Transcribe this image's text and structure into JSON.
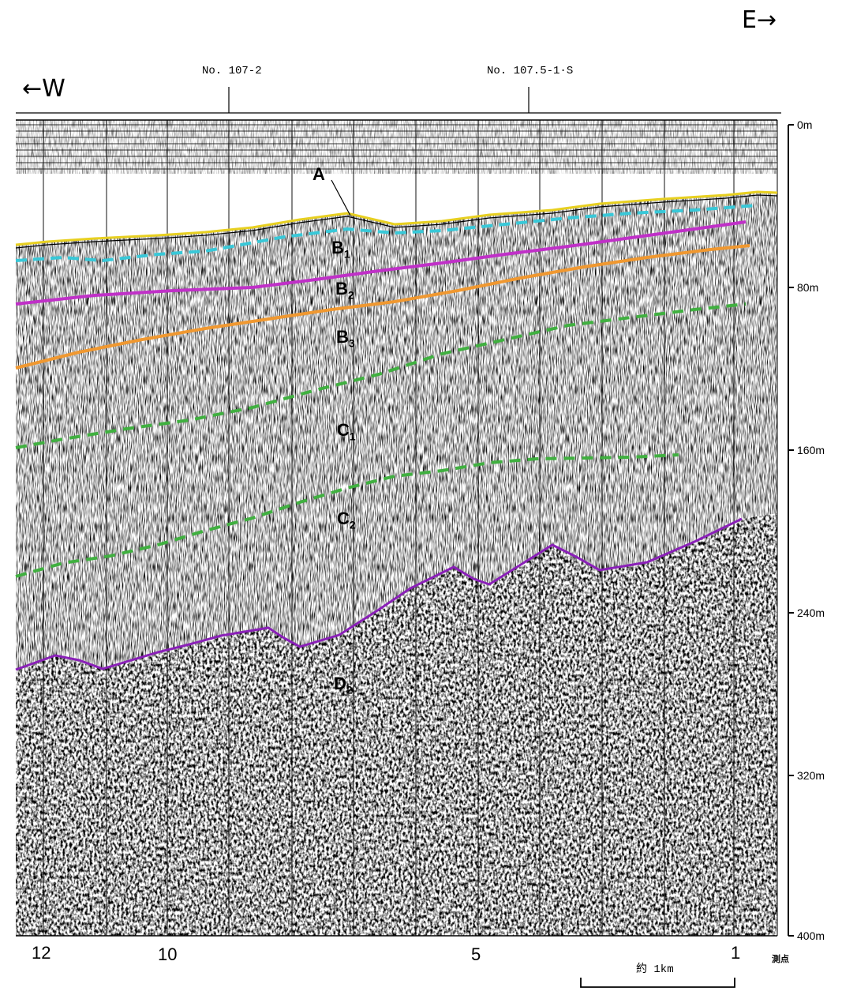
{
  "direction": {
    "west": "←W",
    "east": "E→"
  },
  "station_refs": [
    {
      "id": "ref-1",
      "label": "No. 107-2"
    },
    {
      "id": "ref-2",
      "label": "No. 107.5-1·S"
    }
  ],
  "depth_axis": {
    "labels": [
      "0m",
      "80m",
      "160m",
      "240m",
      "320m",
      "400m"
    ]
  },
  "stations": {
    "labels": [
      "12",
      "10",
      "5",
      "1"
    ],
    "unit": "測点"
  },
  "scale_bar": {
    "label": "約 1km"
  },
  "layers": [
    {
      "key": "A",
      "main": "A",
      "sub": ""
    },
    {
      "key": "B1",
      "main": "B",
      "sub": "1"
    },
    {
      "key": "B2",
      "main": "B",
      "sub": "2"
    },
    {
      "key": "B3",
      "main": "B",
      "sub": "3"
    },
    {
      "key": "C1",
      "main": "C",
      "sub": "1"
    },
    {
      "key": "C2",
      "main": "C",
      "sub": "2"
    },
    {
      "key": "D2",
      "main": "D",
      "sub": "2"
    }
  ],
  "horizon_colors": {
    "A": "#e8d020",
    "B1": "#38c8d8",
    "B2": "#c030c8",
    "B3": "#f09830",
    "C1": "#40b040",
    "C2": "#40b040",
    "D2": "#8a20b8"
  }
}
